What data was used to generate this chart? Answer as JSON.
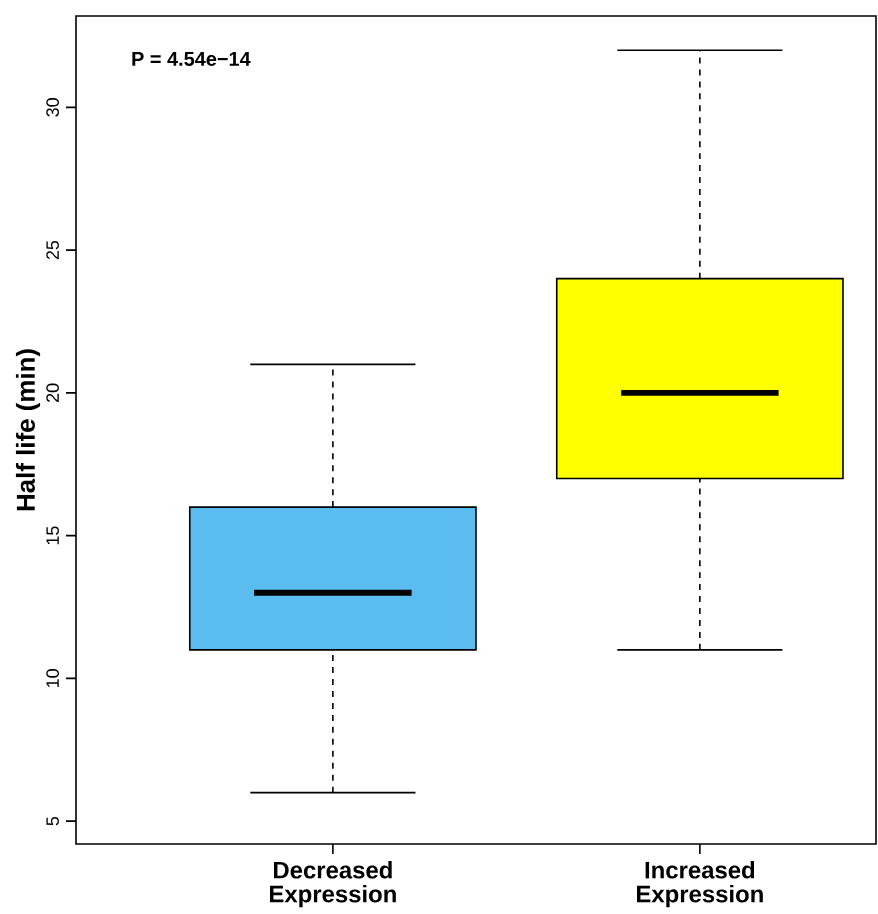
{
  "chart_data": {
    "type": "box",
    "ylabel": "Half life (min)",
    "categories": [
      "Decreased Expression",
      "Increased Expression"
    ],
    "colors": [
      "#5bbcf0",
      "#ffff00"
    ],
    "boxes": [
      {
        "low": 6,
        "q1": 11,
        "median": 13,
        "q3": 16,
        "high": 21
      },
      {
        "low": 11,
        "q1": 17,
        "median": 20,
        "q3": 24,
        "high": 32
      }
    ],
    "ylim": [
      4.2,
      33.2
    ],
    "yticks": [
      5,
      10,
      15,
      20,
      25,
      30
    ],
    "annotations": [
      "P = 4.54e−14"
    ],
    "grid": false
  }
}
